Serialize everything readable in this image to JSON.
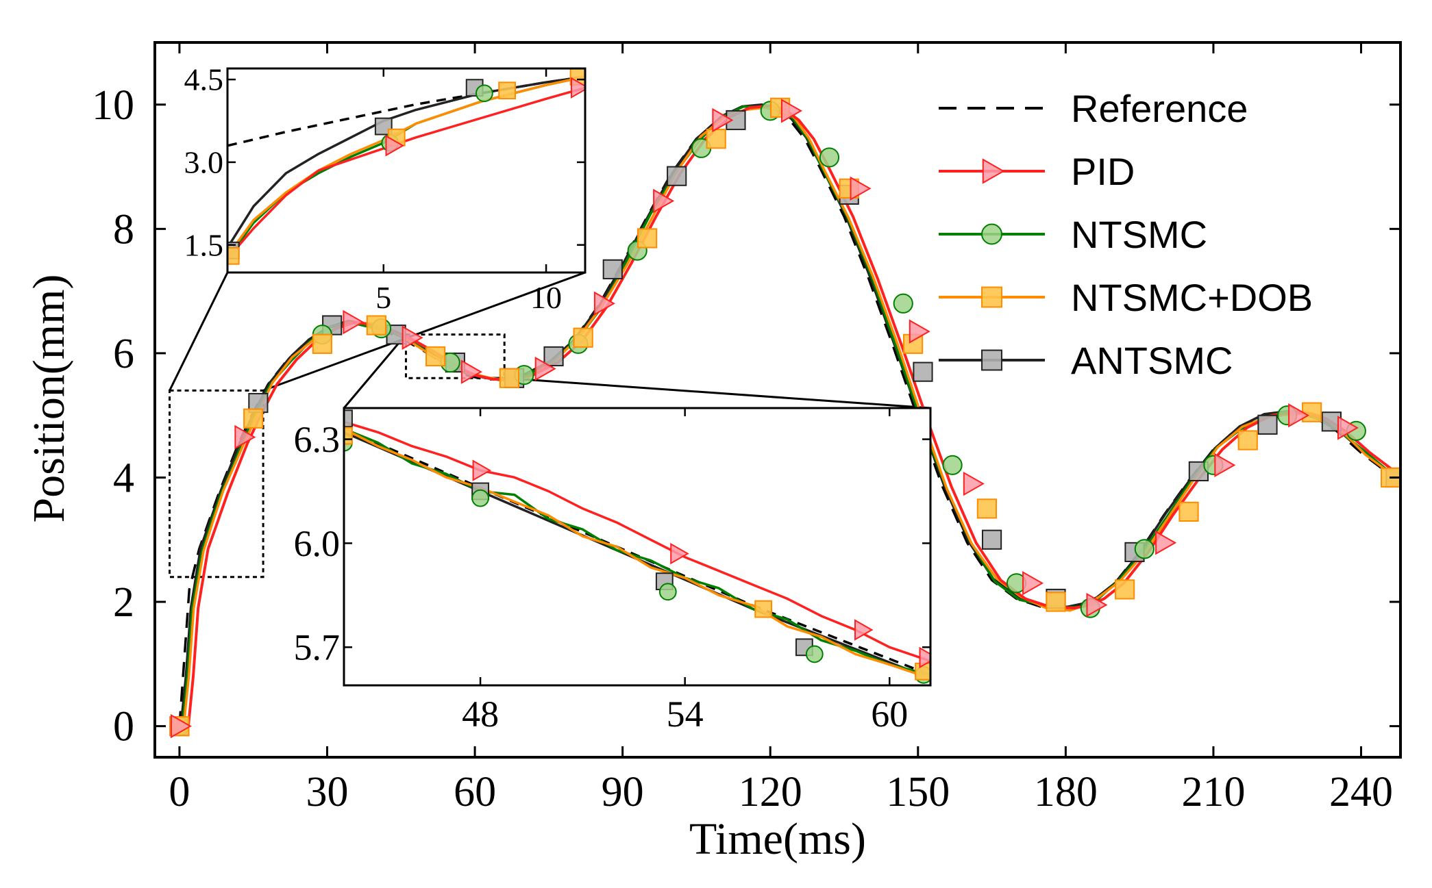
{
  "chart_data": {
    "type": "line",
    "xlabel": "Time(ms)",
    "ylabel": "Position(mm)",
    "xlim": [
      -5,
      248
    ],
    "ylim": [
      -0.5,
      11.0
    ],
    "xticks": [
      "0",
      "30",
      "60",
      "90",
      "120",
      "150",
      "180",
      "210",
      "240"
    ],
    "yticks": [
      "0",
      "2",
      "4",
      "6",
      "8",
      "10"
    ],
    "series": [
      {
        "name": "Reference",
        "color": "#000000",
        "style": "dashed",
        "marker": "none"
      },
      {
        "name": "PID",
        "color": "#ff2020",
        "style": "solid",
        "marker": "triangle-right",
        "marker_fill": "#ff9aa8"
      },
      {
        "name": "NTSMC",
        "color": "#008000",
        "style": "solid",
        "marker": "circle",
        "marker_fill": "#9fd38a"
      },
      {
        "name": "NTSMC+DOB",
        "color": "#ff8c00",
        "style": "solid",
        "marker": "square",
        "marker_fill": "#ffc44d"
      },
      {
        "name": "ANTSMC",
        "color": "#222222",
        "style": "solid",
        "marker": "square",
        "marker_fill": "#b0b0b0"
      }
    ],
    "reference_curve": {
      "x": [
        0,
        1,
        2,
        4,
        6,
        8,
        10,
        12,
        15,
        18,
        22,
        26,
        30,
        34,
        38,
        42,
        46,
        50,
        54,
        58,
        62,
        66,
        70,
        75,
        80,
        85,
        90,
        95,
        100,
        105,
        110,
        114,
        118,
        121,
        124,
        127,
        130,
        135,
        140,
        145,
        150,
        155,
        160,
        165,
        170,
        175,
        180,
        183,
        186,
        190,
        195,
        200,
        205,
        210,
        215,
        220,
        225,
        228,
        231,
        235,
        240,
        245,
        248
      ],
      "y": [
        0,
        1.1,
        2.2,
        2.85,
        3.3,
        3.75,
        4.15,
        4.55,
        5.05,
        5.5,
        5.9,
        6.2,
        6.4,
        6.5,
        6.45,
        6.35,
        6.2,
        6.02,
        5.82,
        5.65,
        5.58,
        5.58,
        5.65,
        5.85,
        6.2,
        6.75,
        7.45,
        8.2,
        8.9,
        9.45,
        9.8,
        9.95,
        9.98,
        9.93,
        9.75,
        9.45,
        9.0,
        8.2,
        7.2,
        6.1,
        4.95,
        3.85,
        2.95,
        2.35,
        2.05,
        1.92,
        1.9,
        1.95,
        2.05,
        2.3,
        2.8,
        3.4,
        3.95,
        4.45,
        4.8,
        5.0,
        5.05,
        5.03,
        4.95,
        4.75,
        4.4,
        4.1,
        4.0
      ]
    },
    "marker_points": {
      "PID": [
        [
          0,
          0
        ],
        [
          13,
          4.65
        ],
        [
          35,
          6.5
        ],
        [
          47,
          6.25
        ],
        [
          59,
          5.7
        ],
        [
          74,
          5.75
        ],
        [
          86,
          6.8
        ],
        [
          98,
          8.45
        ],
        [
          110,
          9.75
        ],
        [
          124,
          9.9
        ],
        [
          138,
          8.65
        ],
        [
          150,
          6.35
        ],
        [
          161,
          3.9
        ],
        [
          173,
          2.3
        ],
        [
          186,
          1.95
        ],
        [
          200,
          2.95
        ],
        [
          212,
          4.2
        ],
        [
          227,
          5.0
        ],
        [
          237,
          4.8
        ]
      ],
      "NTSMC": [
        [
          0,
          0
        ],
        [
          29,
          6.3
        ],
        [
          41,
          6.4
        ],
        [
          55,
          5.85
        ],
        [
          70,
          5.65
        ],
        [
          81,
          6.15
        ],
        [
          93,
          7.65
        ],
        [
          106,
          9.3
        ],
        [
          120,
          9.9
        ],
        [
          132,
          9.15
        ],
        [
          147,
          6.8
        ],
        [
          157,
          4.2
        ],
        [
          170,
          2.3
        ],
        [
          185,
          1.9
        ],
        [
          196,
          2.85
        ],
        [
          210,
          4.2
        ],
        [
          225,
          5.0
        ],
        [
          239,
          4.75
        ]
      ],
      "NTSMC+DOB": [
        [
          0,
          0
        ],
        [
          15,
          4.95
        ],
        [
          29,
          6.15
        ],
        [
          40,
          6.45
        ],
        [
          52,
          5.95
        ],
        [
          67,
          5.6
        ],
        [
          82,
          6.25
        ],
        [
          95,
          7.85
        ],
        [
          109,
          9.45
        ],
        [
          122,
          9.95
        ],
        [
          136,
          8.65
        ],
        [
          149,
          6.15
        ],
        [
          164,
          3.5
        ],
        [
          178,
          2.0
        ],
        [
          192,
          2.2
        ],
        [
          205,
          3.45
        ],
        [
          217,
          4.6
        ],
        [
          230,
          5.05
        ],
        [
          246,
          4.0
        ]
      ],
      "ANTSMC": [
        [
          0,
          0
        ],
        [
          16,
          5.2
        ],
        [
          31,
          6.45
        ],
        [
          44,
          6.3
        ],
        [
          56,
          5.85
        ],
        [
          68,
          5.6
        ],
        [
          76,
          5.95
        ],
        [
          88,
          7.35
        ],
        [
          101,
          8.85
        ],
        [
          113,
          9.75
        ],
        [
          136,
          8.55
        ],
        [
          151,
          5.7
        ],
        [
          165,
          3.0
        ],
        [
          178,
          2.05
        ],
        [
          194,
          2.8
        ],
        [
          207,
          4.1
        ],
        [
          221,
          4.85
        ],
        [
          234,
          4.9
        ],
        [
          247,
          4.0
        ]
      ]
    },
    "zoom_boxes": [
      {
        "x_range": [
          -2,
          17
        ],
        "y_range": [
          2.4,
          5.4
        ]
      },
      {
        "x_range": [
          46,
          66
        ],
        "y_range": [
          5.6,
          6.3
        ]
      }
    ],
    "insets": [
      {
        "xticks": [
          "5",
          "10"
        ],
        "yticks": [
          "1.5",
          "3.0",
          "4.5"
        ],
        "xlim": [
          0.2,
          11.2
        ],
        "ylim": [
          1.0,
          4.7
        ],
        "lines": {
          "Reference": {
            "x": [
              0.2,
              2,
              4,
              6,
              8,
              10,
              11.2
            ],
            "y": [
              3.3,
              3.55,
              3.8,
              4.05,
              4.25,
              4.45,
              4.55
            ]
          },
          "PID": {
            "x": [
              0.2,
              1,
              2,
              3,
              4,
              5,
              6,
              8,
              10,
              11.2
            ],
            "y": [
              1.25,
              1.8,
              2.4,
              2.85,
              3.05,
              3.25,
              3.45,
              3.8,
              4.15,
              4.35
            ]
          },
          "NTSMC": {
            "x": [
              0.2,
              1,
              2,
              3,
              4,
              5,
              6,
              8,
              10,
              11.2
            ],
            "y": [
              1.25,
              1.9,
              2.45,
              2.8,
              3.1,
              3.35,
              3.7,
              4.1,
              4.4,
              4.55
            ]
          },
          "NTSMC+DOB": {
            "x": [
              0.2,
              1,
              2,
              3,
              4,
              5,
              6,
              8,
              10,
              11.2
            ],
            "y": [
              1.3,
              1.95,
              2.45,
              2.85,
              3.15,
              3.4,
              3.7,
              4.1,
              4.4,
              4.55
            ]
          },
          "ANTSMC": {
            "x": [
              0.2,
              1,
              2,
              3,
              4,
              5,
              6,
              8,
              10,
              11.2
            ],
            "y": [
              1.45,
              2.2,
              2.8,
              3.15,
              3.45,
              3.75,
              3.95,
              4.25,
              4.45,
              4.55
            ]
          }
        },
        "markers": {
          "PID": [
            [
              5.3,
              3.3
            ],
            [
              11.0,
              4.35
            ]
          ],
          "NTSMC": [
            [
              5.2,
              3.35
            ],
            [
              8.1,
              4.25
            ]
          ],
          "NTSMC+DOB": [
            [
              0.3,
              1.3
            ],
            [
              5.4,
              3.45
            ],
            [
              8.8,
              4.3
            ],
            [
              11.0,
              4.55
            ]
          ],
          "ANTSMC": [
            [
              0.3,
              1.4
            ],
            [
              5.0,
              3.65
            ],
            [
              7.8,
              4.35
            ]
          ]
        }
      },
      {
        "xticks": [
          "48",
          "54",
          "60"
        ],
        "yticks": [
          "5.7",
          "6.0",
          "6.3"
        ],
        "xlim": [
          44,
          61.2
        ],
        "ylim": [
          5.59,
          6.39
        ],
        "lines": {
          "Reference": {
            "x": [
              44,
              48,
              52,
              56,
              61.2
            ],
            "y": [
              6.33,
              6.16,
              5.99,
              5.82,
              5.62
            ]
          },
          "PID": {
            "x": [
              44,
              45,
              46,
              47,
              48,
              49,
              50,
              51,
              52,
              53,
              54,
              55,
              56,
              57,
              58,
              59,
              60,
              61.2
            ],
            "y": [
              6.35,
              6.32,
              6.28,
              6.25,
              6.21,
              6.19,
              6.15,
              6.1,
              6.06,
              6.01,
              5.96,
              5.92,
              5.88,
              5.84,
              5.79,
              5.75,
              5.7,
              5.66
            ]
          },
          "NTSMC": {
            "x": [
              44,
              45,
              46,
              47,
              48,
              49,
              50,
              51,
              52,
              53,
              54,
              55,
              56,
              57,
              58,
              59,
              60,
              61.2
            ],
            "y": [
              6.33,
              6.29,
              6.23,
              6.2,
              6.15,
              6.14,
              6.07,
              6.04,
              5.98,
              5.95,
              5.9,
              5.87,
              5.81,
              5.78,
              5.72,
              5.69,
              5.65,
              5.62
            ]
          },
          "NTSMC+DOB": {
            "x": [
              44,
              45,
              46,
              47,
              48,
              49,
              50,
              51,
              52,
              53,
              54,
              55,
              56,
              57,
              58,
              59,
              60,
              61.2
            ],
            "y": [
              6.33,
              6.28,
              6.24,
              6.19,
              6.16,
              6.12,
              6.08,
              6.02,
              5.99,
              5.93,
              5.9,
              5.85,
              5.82,
              5.76,
              5.73,
              5.68,
              5.65,
              5.61
            ]
          },
          "ANTSMC": {
            "x": [
              44,
              48,
              52,
              56,
              61.2
            ],
            "y": [
              6.32,
              6.15,
              5.98,
              5.81,
              5.61
            ]
          }
        },
        "markers": {
          "PID": [
            [
              48,
              6.21
            ],
            [
              53.8,
              5.97
            ],
            [
              59.2,
              5.75
            ],
            [
              61.1,
              5.67
            ]
          ],
          "NTSMC": [
            [
              44,
              6.29
            ],
            [
              48,
              6.13
            ],
            [
              53.5,
              5.86
            ],
            [
              57.8,
              5.68
            ],
            [
              61.0,
              5.62
            ]
          ],
          "NTSMC+DOB": [
            [
              44,
              6.31
            ],
            [
              56.3,
              5.81
            ],
            [
              61.0,
              5.63
            ]
          ],
          "ANTSMC": [
            [
              44,
              6.36
            ],
            [
              48,
              6.15
            ],
            [
              53.4,
              5.89
            ],
            [
              57.5,
              5.7
            ]
          ]
        }
      }
    ]
  }
}
